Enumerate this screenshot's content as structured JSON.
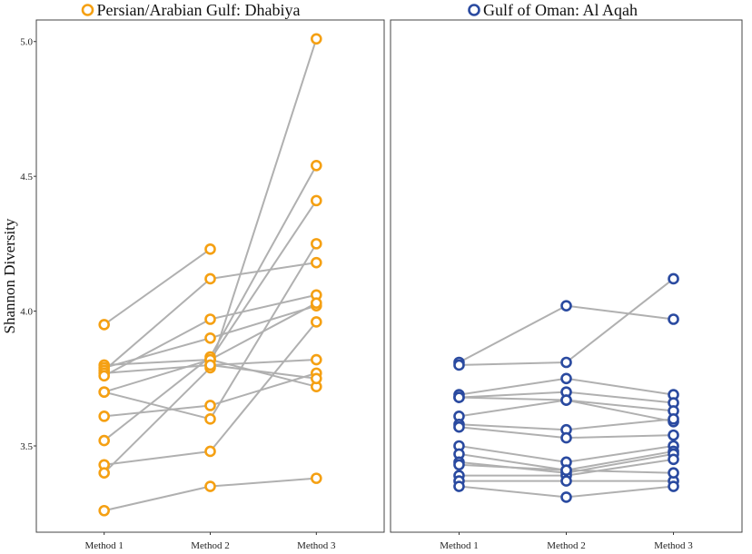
{
  "chart_data": {
    "type": "line",
    "ylabel": "Shannon Diversity",
    "ylim": [
      3.18,
      5.08
    ],
    "yticks": [
      {
        "value": 3.5,
        "label": "3.5"
      },
      {
        "value": 4.0,
        "label": "4.0"
      },
      {
        "value": 4.5,
        "label": "4.5"
      },
      {
        "value": 5.0,
        "label": "5.0"
      }
    ],
    "categories": [
      "Method 1",
      "Method 2",
      "Method 3"
    ],
    "panels": [
      {
        "title": "Persian/Arabian Gulf: Dhabiya",
        "color": "#F5A012",
        "series": [
          [
            3.95,
            4.23,
            null
          ],
          [
            3.8,
            3.82,
            3.72
          ],
          [
            3.79,
            3.9,
            4.02
          ],
          [
            3.78,
            4.12,
            4.18
          ],
          [
            3.77,
            3.8,
            3.82
          ],
          [
            3.76,
            3.97,
            4.06
          ],
          [
            3.7,
            3.82,
            4.03
          ],
          [
            3.7,
            3.6,
            4.25
          ],
          [
            3.61,
            3.65,
            3.77
          ],
          [
            3.52,
            3.83,
            4.54
          ],
          [
            3.43,
            3.48,
            3.96
          ],
          [
            3.4,
            3.79,
            5.01
          ],
          [
            3.26,
            3.35,
            3.38
          ],
          [
            null,
            3.82,
            4.41
          ],
          [
            null,
            3.8,
            3.75
          ]
        ]
      },
      {
        "title": "Gulf of Oman: Al Aqah",
        "color": "#2A4AA0",
        "series": [
          [
            3.81,
            4.02,
            3.97
          ],
          [
            3.8,
            3.81,
            4.12
          ],
          [
            3.69,
            3.75,
            3.69
          ],
          [
            3.68,
            3.7,
            3.66
          ],
          [
            3.68,
            3.67,
            3.63
          ],
          [
            3.61,
            3.67,
            3.59
          ],
          [
            3.58,
            3.56,
            3.6
          ],
          [
            3.57,
            3.53,
            3.54
          ],
          [
            3.5,
            3.44,
            3.5
          ],
          [
            3.47,
            3.41,
            3.48
          ],
          [
            3.44,
            3.4,
            3.47
          ],
          [
            3.39,
            3.39,
            3.45
          ],
          [
            3.37,
            3.37,
            3.37
          ],
          [
            3.35,
            3.31,
            3.35
          ],
          [
            3.43,
            3.41,
            3.4
          ]
        ]
      }
    ]
  }
}
